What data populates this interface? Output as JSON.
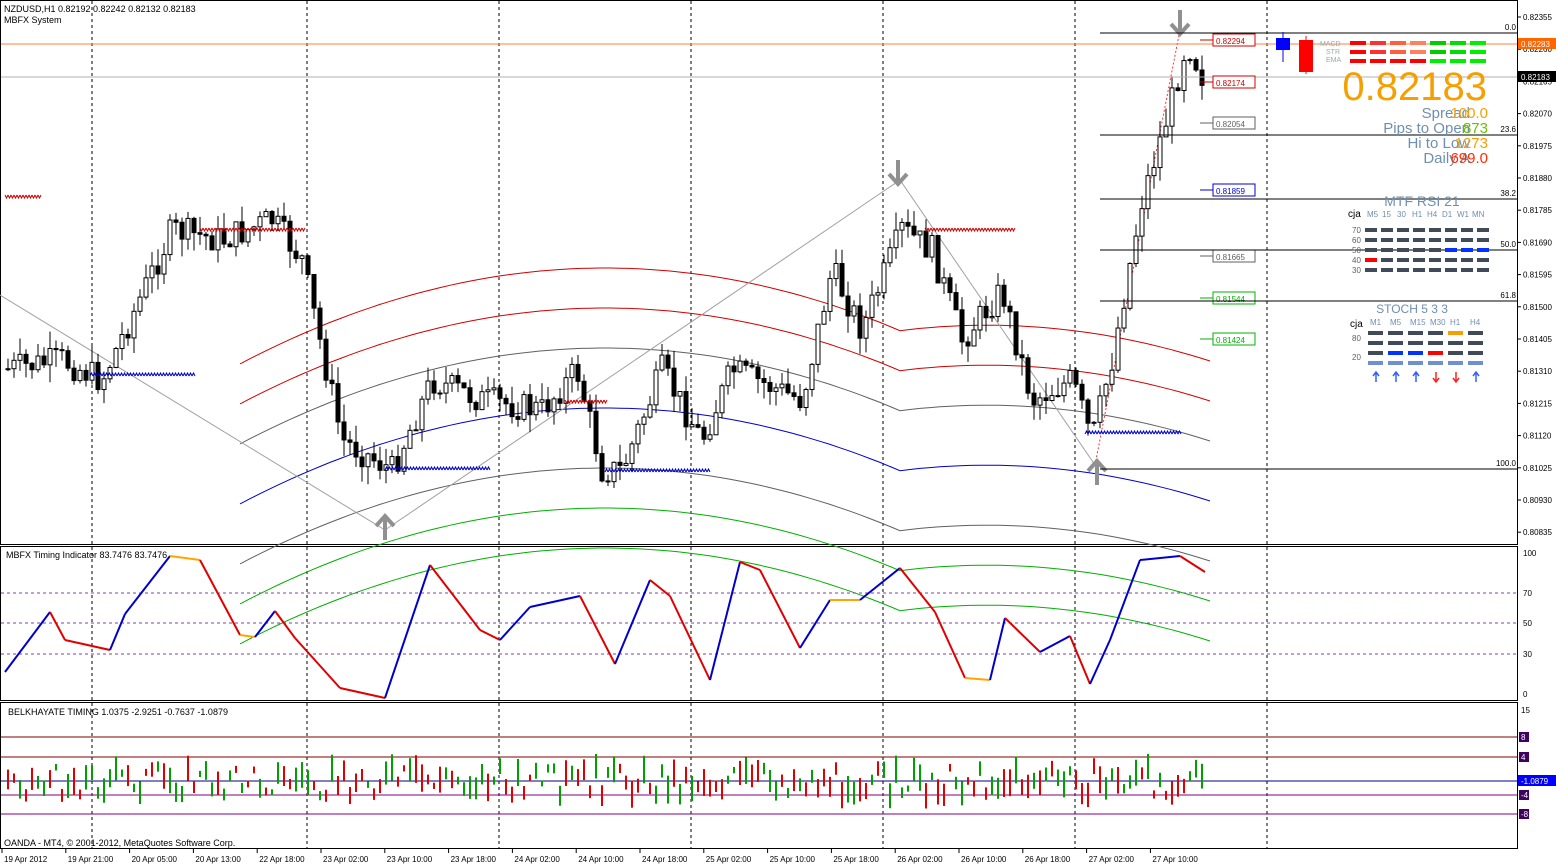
{
  "main_panel": {
    "symbol_line": "NZDUSD,H1  0.82192 0.82242 0.82132 0.82183",
    "system_name": "MBFX System",
    "price_ticks": [
      "0.82355",
      "0.82260",
      "0.82165",
      "0.82070",
      "0.81975",
      "0.81880",
      "0.81785",
      "0.81690",
      "0.81595",
      "0.81500",
      "0.81405",
      "0.81310",
      "0.81215",
      "0.81120",
      "0.81025",
      "0.80930",
      "0.80835"
    ],
    "ask_tag": "0.82283",
    "bid_tag": "0.82183",
    "level_labels": [
      "0.82294",
      "0.82174",
      "0.82054",
      "0.81859",
      "0.81665",
      "0.81544",
      "0.81424"
    ],
    "level_colors": [
      "#d00000",
      "#d00000",
      "#606060",
      "#0000cc",
      "#606060",
      "#00b000",
      "#00b000"
    ],
    "fib_labels": [
      "0.0",
      "23.6",
      "38.2",
      "50.0",
      "61.8",
      "100.0"
    ]
  },
  "info_panel": {
    "big_price": "0.82183",
    "rows": [
      {
        "label": "Spread",
        "value": "100.0",
        "value_color": "#f5a000"
      },
      {
        "label": "Pips to Open",
        "value": "873",
        "value_color": "#6dbf00"
      },
      {
        "label": "Hi to Low",
        "value": "1273",
        "value_color": "#f5a000"
      },
      {
        "label": "Daily A",
        "value": "699.0",
        "value_color": "#ff2b00"
      }
    ],
    "mini_labels": [
      "MACD",
      "STR",
      "EMA"
    ],
    "rsi_title": "MTF RSI  21",
    "rsi_cja": "cja",
    "rsi_timeframes": [
      "M5",
      "15",
      "30",
      "H1",
      "H4",
      "D1",
      "W1",
      "MN"
    ],
    "rsi_levels": [
      "70",
      "60",
      "50",
      "40",
      "30"
    ],
    "stoch_title": "STOCH  5 3 3",
    "stoch_cja": "cja",
    "stoch_timeframes": [
      "M1",
      "M5",
      "M15",
      "M30",
      "H1",
      "H4"
    ],
    "stoch_levels": [
      "80",
      "20"
    ],
    "stoch_arrows": [
      "up",
      "up",
      "up",
      "down",
      "down",
      "up"
    ]
  },
  "timing_panel": {
    "title": "MBFX Timing Indicator 83.7476 83.7476",
    "ticks": [
      "100",
      "70",
      "50",
      "30",
      "0"
    ]
  },
  "belk_panel": {
    "title": "BELKHAYATE TIMING  1.0375 -2.9251 -0.7637 -1.0879",
    "ticks": [
      "15",
      "8",
      "4",
      "-4",
      "-8"
    ],
    "value_tag": "-1.0879"
  },
  "copyright": "OANDA - MT4, © 2001-2012, MetaQuotes Software Corp.",
  "time_axis": [
    "19 Apr 2012",
    "19 Apr 21:00",
    "20 Apr 05:00",
    "20 Apr 13:00",
    "22 Apr 18:00",
    "23 Apr 02:00",
    "23 Apr 10:00",
    "23 Apr 18:00",
    "24 Apr 02:00",
    "24 Apr 10:00",
    "24 Apr 18:00",
    "25 Apr 02:00",
    "25 Apr 10:00",
    "25 Apr 18:00",
    "26 Apr 02:00",
    "26 Apr 10:00",
    "26 Apr 18:00",
    "27 Apr 02:00",
    "27 Apr 10:00"
  ],
  "colors": {
    "up": "#0000ff",
    "down": "#ff0000",
    "bull_line": "#0000cc",
    "bear_line": "#e00000",
    "neutral": "#ffa500"
  }
}
